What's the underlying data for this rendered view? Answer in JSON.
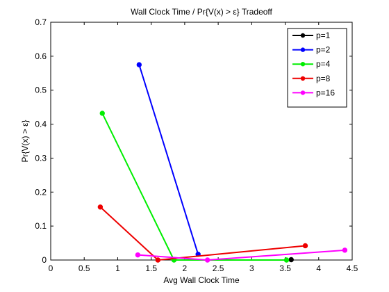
{
  "chart_data": {
    "type": "line",
    "title": "Wall Clock Time / Pr{V(x) > ε} Tradeoff",
    "xlabel": "Avg Wall Clock Time",
    "ylabel": "Pr{V(x) > ε}",
    "xlim": [
      0,
      4.5
    ],
    "ylim": [
      0,
      0.7
    ],
    "xticks": [
      "0",
      "0.5",
      "1",
      "1.5",
      "2",
      "2.5",
      "3",
      "3.5",
      "4",
      "4.5"
    ],
    "yticks": [
      "0",
      "0.1",
      "0.2",
      "0.3",
      "0.4",
      "0.5",
      "0.6",
      "0.7"
    ],
    "grid": false,
    "legend_position": "top-right",
    "series": [
      {
        "name": "p=1",
        "color": "#000000",
        "x": [
          3.59
        ],
        "y": [
          0.001
        ]
      },
      {
        "name": "p=2",
        "color": "#0000ff",
        "x": [
          1.32,
          2.2
        ],
        "y": [
          0.575,
          0.017
        ]
      },
      {
        "name": "p=4",
        "color": "#00ee00",
        "x": [
          0.77,
          1.84,
          3.52
        ],
        "y": [
          0.432,
          0.0,
          0.0
        ]
      },
      {
        "name": "p=8",
        "color": "#ee0000",
        "x": [
          0.74,
          1.6,
          3.8
        ],
        "y": [
          0.156,
          0.0,
          0.042
        ]
      },
      {
        "name": "p=16",
        "color": "#ff00ff",
        "x": [
          1.3,
          2.34,
          4.39
        ],
        "y": [
          0.015,
          0.0,
          0.029
        ]
      }
    ]
  }
}
